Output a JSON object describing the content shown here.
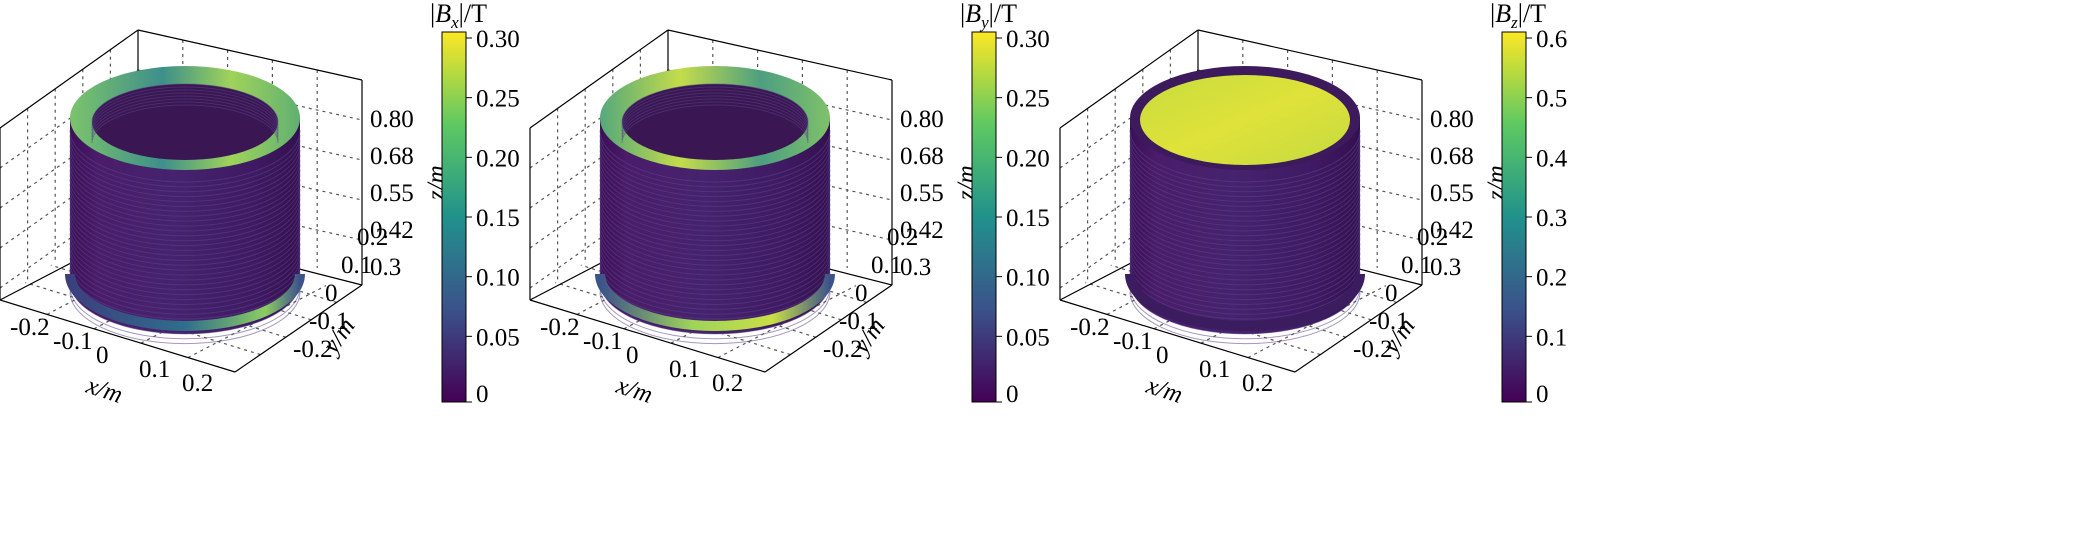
{
  "figure": {
    "panels": [
      {
        "id": "bx",
        "colorbar": {
          "label_var": "B",
          "label_sub": "x",
          "label_unit": "/T"
        }
      },
      {
        "id": "by",
        "colorbar": {
          "label_var": "B",
          "label_sub": "y",
          "label_unit": "/T"
        }
      },
      {
        "id": "bz",
        "colorbar": {
          "label_var": "B",
          "label_sub": "z",
          "label_unit": "/T"
        }
      }
    ]
  },
  "chart_data": [
    {
      "type": "surface3d",
      "quantity": "|Bx|",
      "xlabel": "x/m",
      "ylabel": "y/m",
      "zlabel": "z/m",
      "xlim": [
        -0.25,
        0.25
      ],
      "ylim": [
        -0.25,
        0.25
      ],
      "zlim": [
        0.3,
        0.8
      ],
      "x_ticks": [
        "-0.2",
        "-0.1",
        "0",
        "0.1",
        "0.2"
      ],
      "y_ticks": [
        "-0.2",
        "-0.1",
        "0",
        "0.1",
        "0.2"
      ],
      "z_ticks": [
        "0.3",
        "0.42",
        "0.55",
        "0.68",
        "0.80"
      ],
      "colorbar": {
        "min": 0,
        "max": 0.3,
        "ticks": [
          "0",
          "0.05",
          "0.10",
          "0.15",
          "0.20",
          "0.25",
          "0.30"
        ]
      },
      "colormap": [
        "#440154",
        "#3b528b",
        "#21918c",
        "#5ec962",
        "#fde725"
      ],
      "grid": true
    },
    {
      "type": "surface3d",
      "quantity": "|By|",
      "xlabel": "x/m",
      "ylabel": "y/m",
      "zlabel": "z/m",
      "xlim": [
        -0.25,
        0.25
      ],
      "ylim": [
        -0.25,
        0.25
      ],
      "zlim": [
        0.3,
        0.8
      ],
      "x_ticks": [
        "-0.2",
        "-0.1",
        "0",
        "0.1",
        "0.2"
      ],
      "y_ticks": [
        "-0.2",
        "-0.1",
        "0",
        "0.1",
        "0.2"
      ],
      "z_ticks": [
        "0.3",
        "0.42",
        "0.55",
        "0.68",
        "0.80"
      ],
      "colorbar": {
        "min": 0,
        "max": 0.3,
        "ticks": [
          "0",
          "0.05",
          "0.10",
          "0.15",
          "0.20",
          "0.25",
          "0.30"
        ]
      },
      "colormap": [
        "#440154",
        "#3b528b",
        "#21918c",
        "#5ec962",
        "#fde725"
      ],
      "grid": true
    },
    {
      "type": "surface3d",
      "quantity": "|Bz|",
      "xlabel": "x/m",
      "ylabel": "y/m",
      "zlabel": "z/m",
      "xlim": [
        -0.25,
        0.25
      ],
      "ylim": [
        -0.25,
        0.25
      ],
      "zlim": [
        0.3,
        0.8
      ],
      "x_ticks": [
        "-0.2",
        "-0.1",
        "0",
        "0.1",
        "0.2"
      ],
      "y_ticks": [
        "-0.2",
        "-0.1",
        "0",
        "0.1",
        "0.2"
      ],
      "z_ticks": [
        "0.3",
        "0.42",
        "0.55",
        "0.68",
        "0.80"
      ],
      "colorbar": {
        "min": 0,
        "max": 0.6,
        "ticks": [
          "0",
          "0.1",
          "0.2",
          "0.3",
          "0.4",
          "0.5",
          "0.6"
        ]
      },
      "colormap": [
        "#440154",
        "#3b528b",
        "#21918c",
        "#5ec962",
        "#fde725"
      ],
      "grid": true
    }
  ]
}
